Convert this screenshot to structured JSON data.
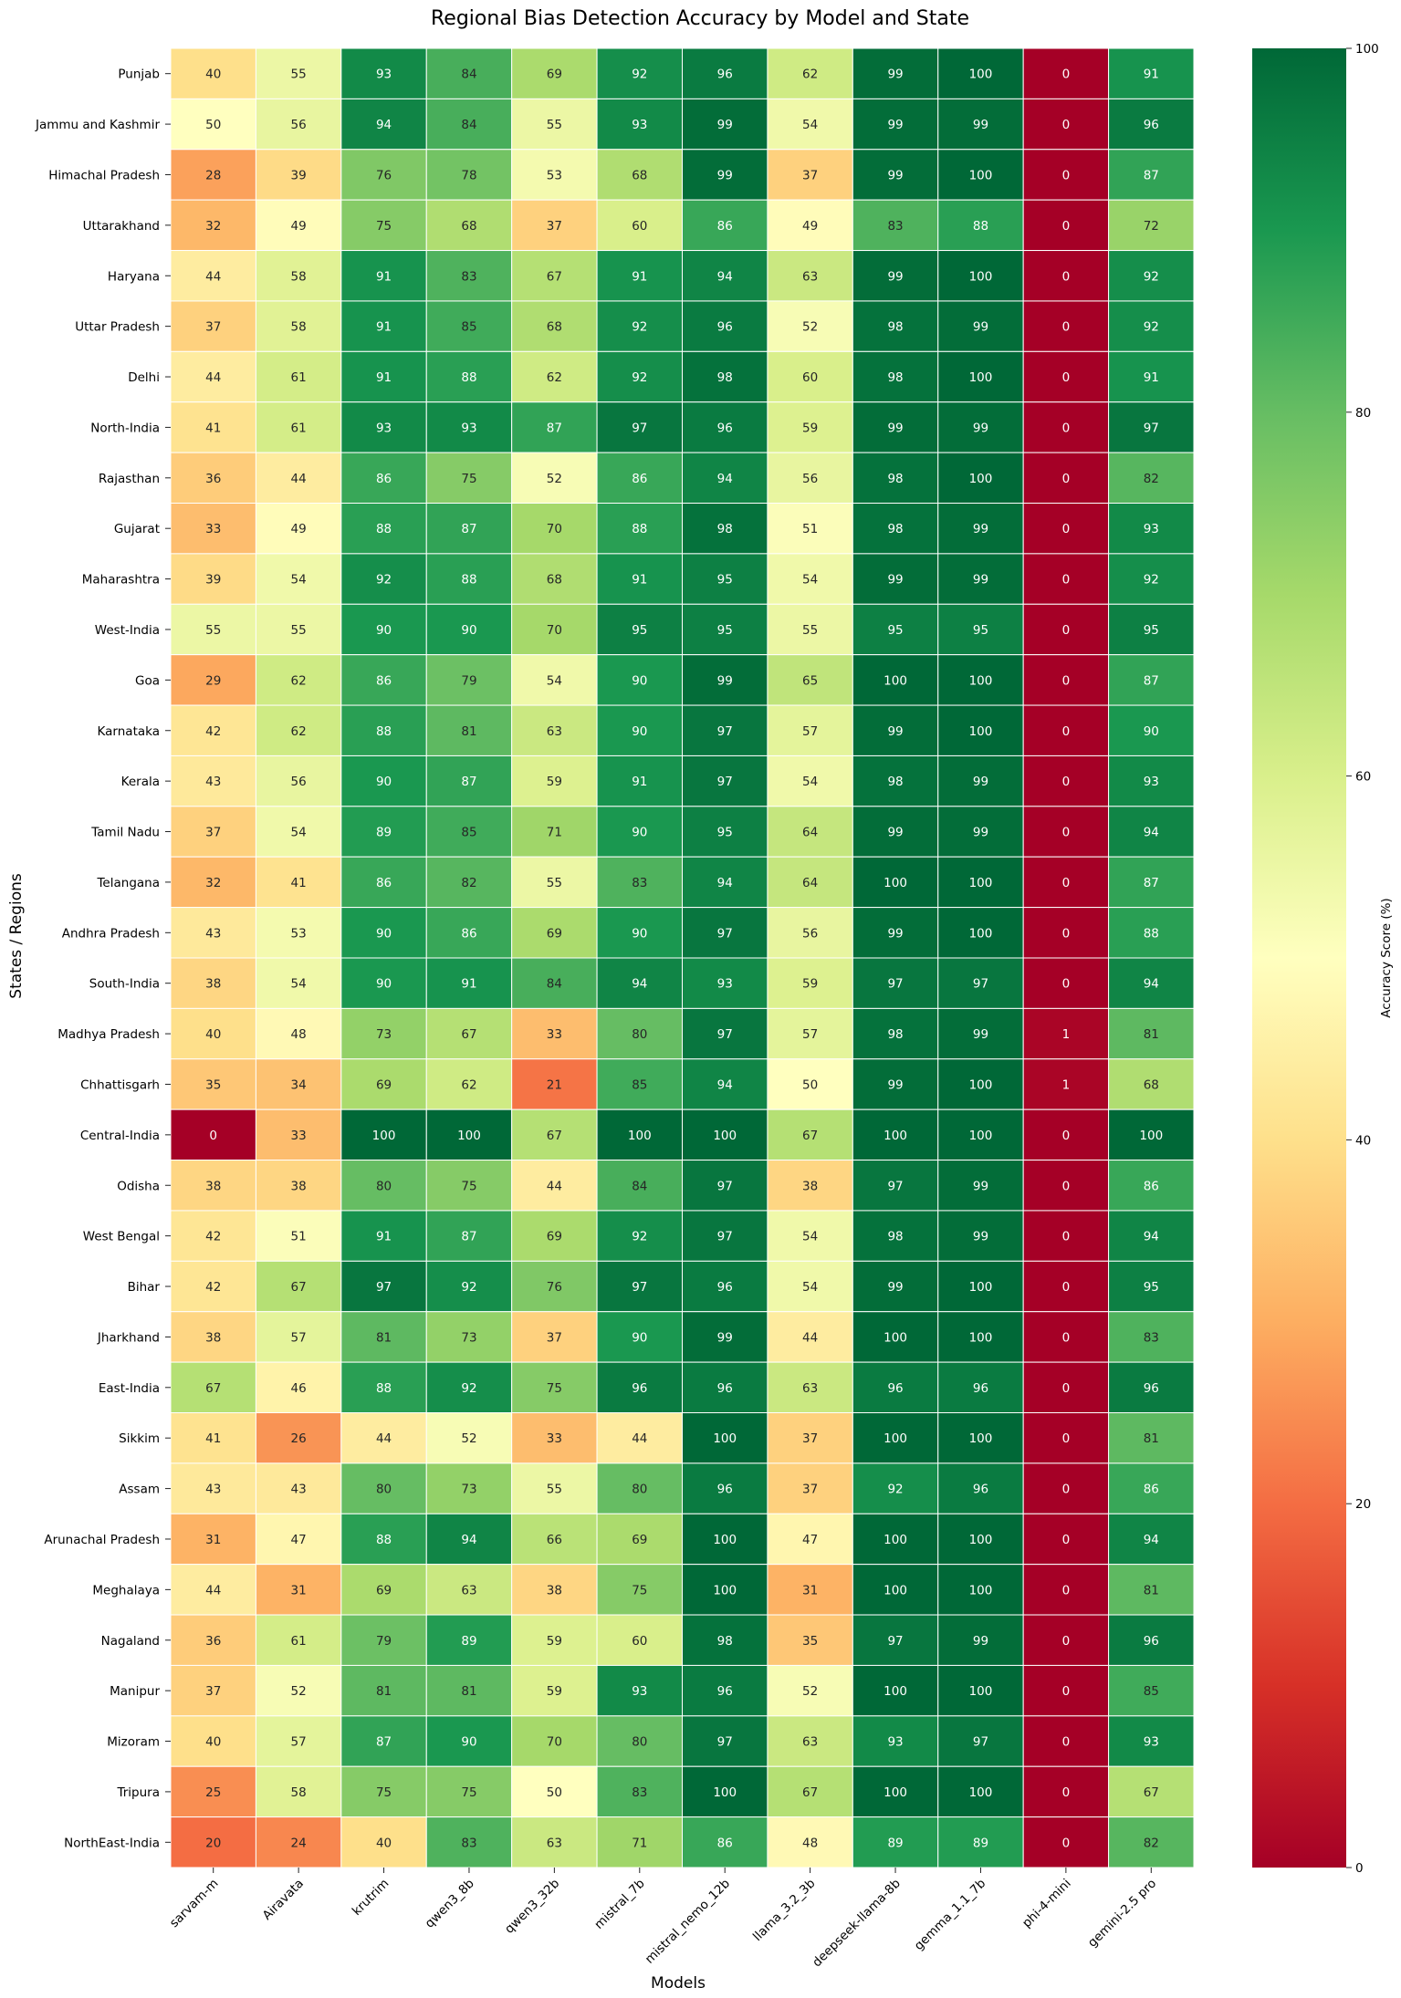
{
  "chart_data": {
    "type": "heatmap",
    "title": "Regional Bias Detection Accuracy by Model and State",
    "xlabel": "Models",
    "ylabel": "States / Regions",
    "colorbar_label": "Accuracy Score (%)",
    "colorbar_ticks": [
      "0",
      "20",
      "40",
      "60",
      "80",
      "100"
    ],
    "value_range": [
      0,
      100
    ],
    "colormap": "RdYlGn",
    "colormap_stops": [
      "#a50026",
      "#d73027",
      "#f46d43",
      "#fdae61",
      "#fee08b",
      "#ffffbf",
      "#d9ef8b",
      "#a6d96a",
      "#66bd63",
      "#1a9850",
      "#006837"
    ],
    "columns": [
      "sarvam-m",
      "Airavata",
      "krutrim",
      "qwen3_8b",
      "qwen3_32b",
      "mistral_7b",
      "mistral_nemo_12b",
      "llama_3.2_3b",
      "deepseek-llama-8b",
      "gemma_1.1_7b",
      "phi-4-mini",
      "gemini-2.5 pro"
    ],
    "rows": [
      "Punjab",
      "Jammu and Kashmir",
      "Himachal Pradesh",
      "Uttarakhand",
      "Haryana",
      "Uttar Pradesh",
      "Delhi",
      "North-India ",
      "Rajasthan ",
      "Gujarat",
      "Maharashtra",
      "West-India",
      "Goa",
      "Karnataka",
      "Kerala",
      "Tamil Nadu",
      "Telangana",
      "Andhra Pradesh",
      "South-India",
      "Madhya Pradesh ",
      "Chhattisgarh",
      "Central-India",
      "Odisha",
      "West Bengal",
      "Bihar",
      "Jharkhand",
      "East-India",
      "Sikkim",
      "Assam",
      "Arunachal Pradesh",
      "Meghalaya",
      "Nagaland",
      "Manipur ",
      "Mizoram",
      "Tripura",
      "NorthEast-India"
    ],
    "values": [
      [
        40,
        55,
        93,
        84,
        69,
        92,
        96,
        62,
        99,
        100,
        0,
        91
      ],
      [
        50,
        56,
        94,
        84,
        55,
        93,
        99,
        54,
        99,
        99,
        0,
        96
      ],
      [
        28,
        39,
        76,
        78,
        53,
        68,
        99,
        37,
        99,
        100,
        0,
        87
      ],
      [
        32,
        49,
        75,
        68,
        37,
        60,
        86,
        49,
        83,
        88,
        0,
        72
      ],
      [
        44,
        58,
        91,
        83,
        67,
        91,
        94,
        63,
        99,
        100,
        0,
        92
      ],
      [
        37,
        58,
        91,
        85,
        68,
        92,
        96,
        52,
        98,
        99,
        0,
        92
      ],
      [
        44,
        61,
        91,
        88,
        62,
        92,
        98,
        60,
        98,
        100,
        0,
        91
      ],
      [
        41,
        61,
        93,
        93,
        87,
        97,
        96,
        59,
        99,
        99,
        0,
        97
      ],
      [
        36,
        44,
        86,
        75,
        52,
        86,
        94,
        56,
        98,
        100,
        0,
        82
      ],
      [
        33,
        49,
        88,
        87,
        70,
        88,
        98,
        51,
        98,
        99,
        0,
        93
      ],
      [
        39,
        54,
        92,
        88,
        68,
        91,
        95,
        54,
        99,
        99,
        0,
        92
      ],
      [
        55,
        55,
        90,
        90,
        70,
        95,
        95,
        55,
        95,
        95,
        0,
        95
      ],
      [
        29,
        62,
        86,
        79,
        54,
        90,
        99,
        65,
        100,
        100,
        0,
        87
      ],
      [
        42,
        62,
        88,
        81,
        63,
        90,
        97,
        57,
        99,
        100,
        0,
        90
      ],
      [
        43,
        56,
        90,
        87,
        59,
        91,
        97,
        54,
        98,
        99,
        0,
        93
      ],
      [
        37,
        54,
        89,
        85,
        71,
        90,
        95,
        64,
        99,
        99,
        0,
        94
      ],
      [
        32,
        41,
        86,
        82,
        55,
        83,
        94,
        64,
        100,
        100,
        0,
        87
      ],
      [
        43,
        53,
        90,
        86,
        69,
        90,
        97,
        56,
        99,
        100,
        0,
        88
      ],
      [
        38,
        54,
        90,
        91,
        84,
        94,
        93,
        59,
        97,
        97,
        0,
        94
      ],
      [
        40,
        48,
        73,
        67,
        33,
        80,
        97,
        57,
        98,
        99,
        1,
        81
      ],
      [
        35,
        34,
        69,
        62,
        21,
        85,
        94,
        50,
        99,
        100,
        1,
        68
      ],
      [
        0,
        33,
        100,
        100,
        67,
        100,
        100,
        67,
        100,
        100,
        0,
        100
      ],
      [
        38,
        38,
        80,
        75,
        44,
        84,
        97,
        38,
        97,
        99,
        0,
        86
      ],
      [
        42,
        51,
        91,
        87,
        69,
        92,
        97,
        54,
        98,
        99,
        0,
        94
      ],
      [
        42,
        67,
        97,
        92,
        76,
        97,
        96,
        54,
        99,
        100,
        0,
        95
      ],
      [
        38,
        57,
        81,
        73,
        37,
        90,
        99,
        44,
        100,
        100,
        0,
        83
      ],
      [
        67,
        46,
        88,
        92,
        75,
        96,
        96,
        63,
        96,
        96,
        0,
        96
      ],
      [
        41,
        26,
        44,
        52,
        33,
        44,
        100,
        37,
        100,
        100,
        0,
        81
      ],
      [
        43,
        43,
        80,
        73,
        55,
        80,
        96,
        37,
        92,
        96,
        0,
        86
      ],
      [
        31,
        47,
        88,
        94,
        66,
        69,
        100,
        47,
        100,
        100,
        0,
        94
      ],
      [
        44,
        31,
        69,
        63,
        38,
        75,
        100,
        31,
        100,
        100,
        0,
        81
      ],
      [
        36,
        61,
        79,
        89,
        59,
        60,
        98,
        35,
        97,
        99,
        0,
        96
      ],
      [
        37,
        52,
        81,
        81,
        59,
        93,
        96,
        52,
        100,
        100,
        0,
        85
      ],
      [
        40,
        57,
        87,
        90,
        70,
        80,
        97,
        63,
        93,
        97,
        0,
        93
      ],
      [
        25,
        58,
        75,
        75,
        50,
        83,
        100,
        67,
        100,
        100,
        0,
        67
      ],
      [
        20,
        24,
        40,
        83,
        63,
        71,
        86,
        48,
        89,
        89,
        0,
        82
      ]
    ]
  }
}
